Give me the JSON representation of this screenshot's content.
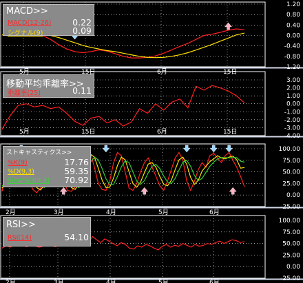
{
  "panels": [
    {
      "id": "macd",
      "title": "MACD>>",
      "y_ticks": [
        "1.20",
        "0.80",
        "0.40",
        "0.00",
        "-0.40",
        "-0.80",
        "-1.20"
      ],
      "x_ticks": [
        "5月",
        "15日",
        "6月",
        "15日"
      ],
      "legend": [
        {
          "label": "MACD(12-26)",
          "value": "0.22",
          "color": "#ff3030"
        },
        {
          "label": "シグナル(9)",
          "value": "0.09",
          "color": "#ffd800"
        }
      ]
    },
    {
      "id": "divergence",
      "title": "移動平均乖離率>>",
      "y_ticks": [
        "3.00",
        "2.00",
        "1.00",
        "0.00",
        "-1.00",
        "-2.00",
        "-3.00",
        "-4.00"
      ],
      "x_ticks": [
        "5月",
        "15日",
        "6月",
        "15日"
      ],
      "legend": [
        {
          "label": "乖離率(25)",
          "value": "0.11",
          "color": "#ff3030"
        }
      ]
    },
    {
      "id": "stochastics",
      "title": "ストキャスティクス>>",
      "y_ticks": [
        "100.00",
        "75.00",
        "50.00",
        "25.00",
        "0.00",
        "-25.00"
      ],
      "x_ticks": [
        "2月",
        "3月",
        "4月",
        "5月",
        "6月"
      ],
      "legend": [
        {
          "label": "%K(9)",
          "value": "17.76",
          "color": "#ff3030"
        },
        {
          "label": "%D(9,3)",
          "value": "59.35",
          "color": "#ffd800"
        },
        {
          "label": "Slow%D(9,3)",
          "value": "70.92",
          "color": "#33cc33"
        }
      ]
    },
    {
      "id": "rsi",
      "title": "RSI>>",
      "y_ticks": [
        "100.00",
        "75.00",
        "50.00",
        "25.00",
        "0.00",
        "-25.00"
      ],
      "x_ticks": [
        "2月",
        "3月",
        "4月",
        "5月",
        "6月"
      ],
      "legend": [
        {
          "label": "RSI(14)",
          "value": "54.10",
          "color": "#ff3030"
        }
      ]
    }
  ],
  "chart_data": [
    {
      "type": "line",
      "x": [
        0,
        1,
        2,
        3,
        4,
        5,
        6,
        7,
        8,
        9,
        10,
        11,
        12,
        13,
        14,
        15,
        16,
        17,
        18,
        19,
        20,
        21,
        22,
        23,
        24,
        25,
        26,
        27,
        28,
        29,
        30
      ],
      "y_range": [
        -1.2,
        1.2
      ],
      "series": [
        {
          "name": "MACD(12-26)",
          "color": "#ff3030",
          "values": [
            0.02,
            0.08,
            0.1,
            0.12,
            0.08,
            0.0,
            -0.15,
            -0.35,
            -0.52,
            -0.62,
            -0.66,
            -0.62,
            -0.55,
            -0.6,
            -0.7,
            -0.8,
            -0.86,
            -0.86,
            -0.84,
            -0.78,
            -0.68,
            -0.55,
            -0.42,
            -0.3,
            -0.15,
            0.0,
            0.05,
            0.12,
            0.2,
            0.25,
            0.22
          ]
        },
        {
          "name": "シグナル(9)",
          "color": "#ffd800",
          "values": [
            0.02,
            0.04,
            0.06,
            0.07,
            0.06,
            0.05,
            0.0,
            -0.08,
            -0.18,
            -0.28,
            -0.38,
            -0.46,
            -0.52,
            -0.58,
            -0.62,
            -0.68,
            -0.74,
            -0.8,
            -0.84,
            -0.85,
            -0.84,
            -0.8,
            -0.74,
            -0.66,
            -0.56,
            -0.45,
            -0.34,
            -0.22,
            -0.1,
            0.02,
            0.09
          ]
        }
      ],
      "markers_down_x": [
        9
      ],
      "markers_up_x": [
        28
      ]
    },
    {
      "type": "line",
      "x": [
        0,
        1,
        2,
        3,
        4,
        5,
        6,
        7,
        8,
        9,
        10,
        11,
        12,
        13,
        14,
        15,
        16,
        17,
        18,
        19,
        20,
        21,
        22,
        23,
        24,
        25,
        26,
        27,
        28,
        29,
        30
      ],
      "y_range": [
        -4,
        3
      ],
      "series": [
        {
          "name": "乖離率(25)",
          "values": [
            -3.2,
            -1.5,
            -0.2,
            0.0,
            -0.4,
            -0.2,
            -0.6,
            -0.4,
            -1.2,
            -2.2,
            -2.7,
            -1.8,
            -1.6,
            -2.4,
            -2.0,
            -2.8,
            -2.3,
            -0.6,
            -1.2,
            0.0,
            -0.8,
            0.2,
            0.6,
            -0.5,
            2.2,
            1.7,
            2.3,
            2.0,
            1.6,
            1.0,
            0.11
          ]
        }
      ]
    },
    {
      "type": "line",
      "x_count": 64,
      "y_range": [
        -25,
        100
      ],
      "series": [
        {
          "name": "%K(9)",
          "values": [
            8,
            40,
            75,
            90,
            95,
            85,
            60,
            30,
            12,
            5,
            15,
            45,
            70,
            92,
            88,
            60,
            30,
            10,
            8,
            18,
            50,
            80,
            95,
            90,
            60,
            25,
            12,
            10,
            30,
            70,
            92,
            85,
            50,
            15,
            10,
            25,
            50,
            70,
            80,
            60,
            40,
            20,
            10,
            30,
            55,
            80,
            92,
            75,
            30,
            10,
            30,
            55,
            70,
            60,
            85,
            90,
            80,
            70,
            85,
            92,
            75,
            60,
            40,
            17.76
          ]
        },
        {
          "name": "%D(9,3)",
          "values": [
            15,
            25,
            45,
            68,
            86,
            90,
            80,
            58,
            34,
            16,
            11,
            22,
            43,
            69,
            83,
            80,
            59,
            33,
            16,
            12,
            25,
            49,
            75,
            88,
            82,
            58,
            32,
            16,
            17,
            37,
            64,
            82,
            76,
            50,
            25,
            17,
            28,
            48,
            67,
            70,
            60,
            40,
            23,
            20,
            32,
            55,
            76,
            82,
            66,
            38,
            23,
            32,
            52,
            62,
            72,
            78,
            85,
            80,
            78,
            82,
            84,
            76,
            58,
            59.35
          ]
        },
        {
          "name": "Slow%D(9,3)",
          "values": [
            20,
            22,
            30,
            46,
            66,
            81,
            85,
            76,
            57,
            36,
            20,
            16,
            25,
            45,
            65,
            77,
            74,
            57,
            36,
            20,
            16,
            29,
            50,
            71,
            82,
            76,
            57,
            35,
            22,
            23,
            40,
            61,
            74,
            70,
            50,
            30,
            23,
            31,
            48,
            62,
            66,
            57,
            41,
            28,
            25,
            36,
            54,
            71,
            75,
            62,
            42,
            31,
            36,
            49,
            62,
            71,
            78,
            81,
            81,
            80,
            81,
            81,
            73,
            70.92
          ]
        }
      ],
      "markers_down_x": [
        5,
        27,
        48,
        55,
        59
      ],
      "markers_up_x": [
        16,
        37,
        60
      ]
    },
    {
      "type": "line",
      "x_count": 60,
      "y_range": [
        -25,
        100
      ],
      "series": [
        {
          "name": "RSI(14)",
          "values": [
            40,
            45,
            42,
            48,
            44,
            46,
            43,
            47,
            45,
            42,
            44,
            48,
            45,
            43,
            46,
            50,
            47,
            44,
            50,
            55,
            48,
            52,
            65,
            58,
            52,
            60,
            55,
            50,
            45,
            52,
            48,
            40,
            38,
            45,
            42,
            48,
            45,
            40,
            36,
            44,
            48,
            42,
            46,
            44,
            50,
            46,
            42,
            48,
            44,
            46,
            50,
            48,
            52,
            55,
            50,
            54,
            58,
            56,
            52,
            54.1
          ]
        }
      ]
    }
  ]
}
